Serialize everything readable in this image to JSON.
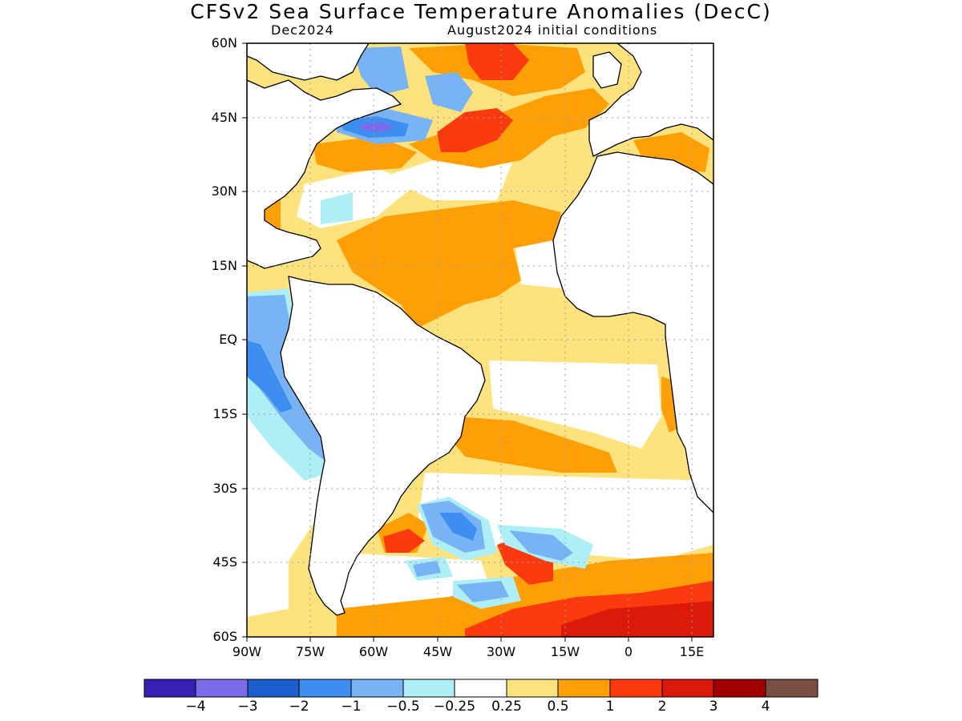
{
  "title": "CFSv2 Sea Surface Temperature Anomalies (DecC)",
  "subtitle_left": "Dec2024",
  "subtitle_right": "August2024 initial conditions",
  "map": {
    "region": "Atlantic Ocean",
    "lon_range": [
      -90,
      20
    ],
    "lat_range": [
      -60,
      60
    ],
    "grid": true,
    "lat_labels": [
      "60N",
      "45N",
      "30N",
      "15N",
      "EQ",
      "15S",
      "30S",
      "45S",
      "60S"
    ],
    "lon_labels": [
      "90W",
      "75W",
      "60W",
      "45W",
      "30W",
      "15W",
      "0",
      "15E"
    ]
  },
  "colorbar": {
    "colors": [
      "#3a1fb4",
      "#7c6be8",
      "#1b5ecc",
      "#3d8ef0",
      "#78b4f5",
      "#aeeef6",
      "#ffffff",
      "#fde27e",
      "#fd9f05",
      "#fc3a10",
      "#dc1a0a",
      "#a20000",
      "#784f42"
    ],
    "labels": [
      "−4",
      "−3",
      "−2",
      "−1",
      "−0.5",
      "−0.25",
      "0.25",
      "0.5",
      "1",
      "2",
      "3",
      "4"
    ]
  }
}
